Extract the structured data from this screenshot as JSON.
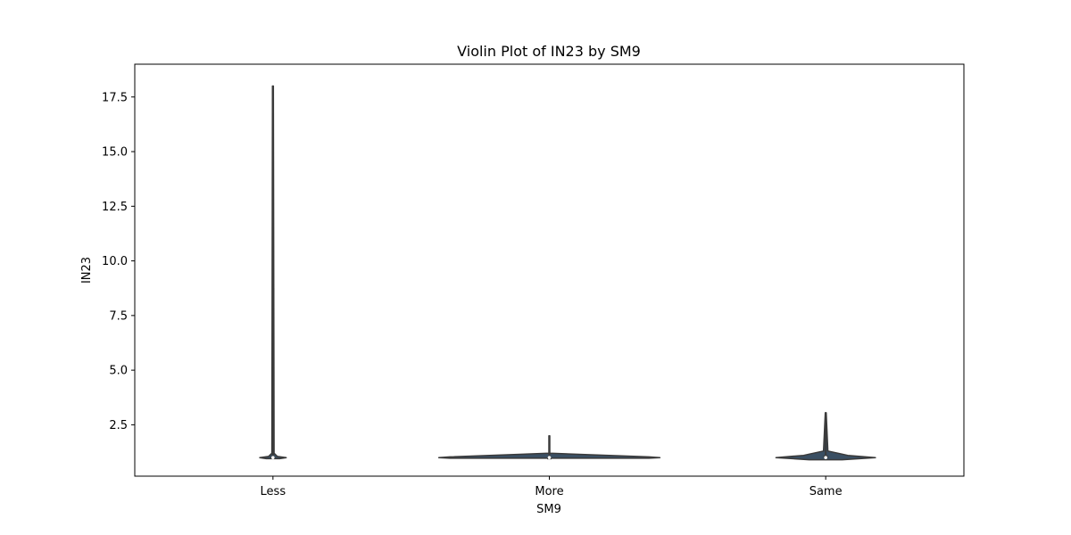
{
  "chart_data": {
    "type": "violin",
    "title": "Violin Plot of IN23 by SM9",
    "xlabel": "SM9",
    "ylabel": "IN23",
    "categories": [
      "Less",
      "More",
      "Same"
    ],
    "ylim": [
      0.15,
      19.0
    ],
    "yticks": [
      2.5,
      5.0,
      7.5,
      10.0,
      12.5,
      15.0,
      17.5
    ],
    "ytick_labels": [
      "2.5",
      "5.0",
      "7.5",
      "10.0",
      "12.5",
      "15.0",
      "17.5"
    ],
    "grid": false,
    "colors": {
      "violin_fill": "#3a4f63",
      "violin_edge": "#3a3a3a",
      "inner_box": "#3a3a3a"
    },
    "violins": [
      {
        "category": "Less",
        "min": 0.95,
        "q1": 1.0,
        "median": 1.0,
        "q3": 1.05,
        "max": 18.0,
        "profile": [
          [
            0.95,
            0.06
          ],
          [
            1.0,
            0.12
          ],
          [
            1.05,
            0.04
          ],
          [
            1.2,
            0.01
          ],
          [
            18.0,
            0.004
          ]
        ]
      },
      {
        "category": "More",
        "min": 0.97,
        "q1": 1.0,
        "median": 1.0,
        "q3": 1.0,
        "max": 2.0,
        "profile": [
          [
            0.97,
            0.9
          ],
          [
            1.0,
            1.0
          ],
          [
            1.03,
            0.9
          ],
          [
            1.2,
            0.004
          ],
          [
            2.0,
            0.004
          ]
        ]
      },
      {
        "category": "Same",
        "min": 0.9,
        "q1": 0.98,
        "median": 1.0,
        "q3": 1.1,
        "max": 3.05,
        "profile": [
          [
            0.9,
            0.15
          ],
          [
            1.0,
            0.45
          ],
          [
            1.1,
            0.2
          ],
          [
            1.3,
            0.02
          ],
          [
            3.05,
            0.004
          ]
        ]
      }
    ]
  }
}
